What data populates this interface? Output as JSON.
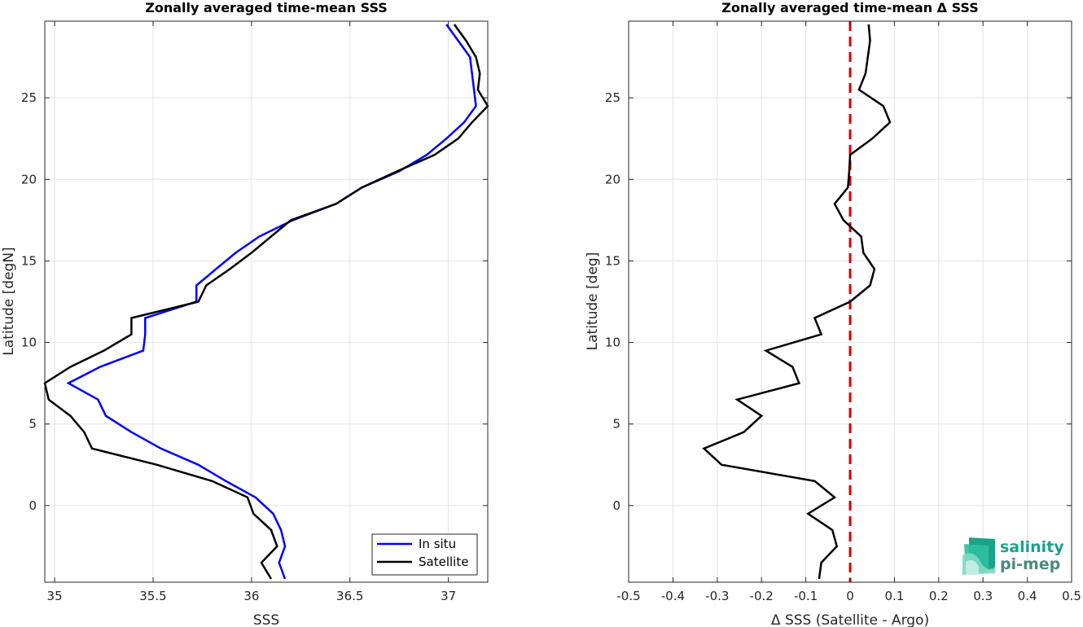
{
  "chart_data": [
    {
      "type": "line",
      "title": "Zonally averaged time-mean SSS",
      "xlabel": "SSS",
      "ylabel": "Latitude [degN]",
      "xlim": [
        34.95,
        37.2
      ],
      "ylim": [
        -4.7,
        29.7
      ],
      "xticks": [
        "35",
        "35.5",
        "36",
        "36.5",
        "37"
      ],
      "xtick_values": [
        35,
        35.5,
        36,
        36.5,
        37
      ],
      "yticks": [
        "0",
        "5",
        "10",
        "15",
        "20",
        "25"
      ],
      "ytick_values": [
        0,
        5,
        10,
        15,
        20,
        25
      ],
      "grid": true,
      "legend": "bottom-right",
      "series": [
        {
          "name": "In situ",
          "color": "#0000ff",
          "lat": [
            29.5,
            27.5,
            25.5,
            24.5,
            23.5,
            22.5,
            21.5,
            20.5,
            19.5,
            18.5,
            17.5,
            16.5,
            15.5,
            14.5,
            13.5,
            12.5,
            11.5,
            10.5,
            9.5,
            8.5,
            7.5,
            6.5,
            5.5,
            4.5,
            3.5,
            2.5,
            1.5,
            0.5,
            -0.5,
            -1.5,
            -2.5,
            -3.5,
            -4.5
          ],
          "sss": [
            36.99,
            37.11,
            37.13,
            37.14,
            37.08,
            36.99,
            36.89,
            36.75,
            36.56,
            36.43,
            36.21,
            36.04,
            35.92,
            35.82,
            35.72,
            35.72,
            35.46,
            35.46,
            35.45,
            35.23,
            35.07,
            35.22,
            35.26,
            35.39,
            35.54,
            35.73,
            35.87,
            36.02,
            36.11,
            36.15,
            36.17,
            36.14,
            36.17
          ]
        },
        {
          "name": "Satellite",
          "color": "#000000",
          "lat": [
            29.5,
            28.5,
            27.5,
            26.5,
            25.5,
            24.5,
            23.5,
            22.5,
            21.5,
            20.5,
            19.5,
            18.5,
            17.5,
            16.5,
            15.5,
            14.5,
            13.5,
            12.5,
            11.5,
            10.5,
            9.5,
            8.5,
            7.5,
            6.5,
            5.5,
            4.5,
            3.5,
            2.5,
            1.5,
            0.5,
            -0.5,
            -1.5,
            -2.5,
            -3.5,
            -4.5
          ],
          "sss": [
            37.03,
            37.09,
            37.14,
            37.16,
            37.15,
            37.2,
            37.12,
            37.05,
            36.93,
            36.74,
            36.56,
            36.43,
            36.2,
            36.1,
            36.0,
            35.89,
            35.77,
            35.73,
            35.39,
            35.39,
            35.25,
            35.08,
            34.95,
            34.97,
            35.08,
            35.15,
            35.19,
            35.52,
            35.8,
            35.98,
            36.01,
            36.1,
            36.13,
            36.05,
            36.1
          ]
        }
      ]
    },
    {
      "type": "line",
      "title": "Zonally averaged time-mean Δ SSS",
      "xlabel": "Δ SSS (Satellite - Argo)",
      "ylabel": "Latitude [deg]",
      "xlim": [
        -0.5,
        0.5
      ],
      "ylim": [
        -4.7,
        29.7
      ],
      "xticks": [
        "-0.5",
        "-0.4",
        "-0.3",
        "-0.2",
        "-0.1",
        "0",
        "0.1",
        "0.2",
        "0.3",
        "0.4",
        "0.5"
      ],
      "xtick_values": [
        -0.5,
        -0.4,
        -0.3,
        -0.2,
        -0.1,
        0,
        0.1,
        0.2,
        0.3,
        0.4,
        0.5
      ],
      "yticks": [
        "0",
        "5",
        "10",
        "15",
        "20",
        "25"
      ],
      "ytick_values": [
        0,
        5,
        10,
        15,
        20,
        25
      ],
      "grid": true,
      "reference_line": {
        "x": 0,
        "color": "#dd0000",
        "style": "dashed"
      },
      "series": [
        {
          "color": "#000000",
          "lat": [
            29.5,
            28.5,
            26.5,
            25.5,
            24.5,
            23.5,
            22.5,
            21.5,
            20.5,
            19.5,
            18.5,
            17.5,
            16.5,
            15.5,
            14.5,
            13.5,
            12.5,
            11.5,
            10.5,
            9.5,
            8.5,
            7.5,
            6.5,
            5.5,
            4.5,
            3.5,
            2.5,
            1.5,
            0.5,
            -0.5,
            -1.5,
            -2.5,
            -3.5,
            -4.5
          ],
          "dsss": [
            0.042,
            0.045,
            0.035,
            0.02,
            0.075,
            0.09,
            0.05,
            0.0,
            -0.002,
            -0.005,
            -0.035,
            -0.015,
            0.025,
            0.03,
            0.055,
            0.045,
            0.0,
            -0.08,
            -0.065,
            -0.19,
            -0.13,
            -0.115,
            -0.255,
            -0.2,
            -0.24,
            -0.33,
            -0.29,
            -0.08,
            -0.035,
            -0.095,
            -0.04,
            -0.03,
            -0.065,
            -0.07
          ]
        }
      ]
    }
  ],
  "logo": {
    "line1": "salinity",
    "line2": "pi-mep"
  }
}
